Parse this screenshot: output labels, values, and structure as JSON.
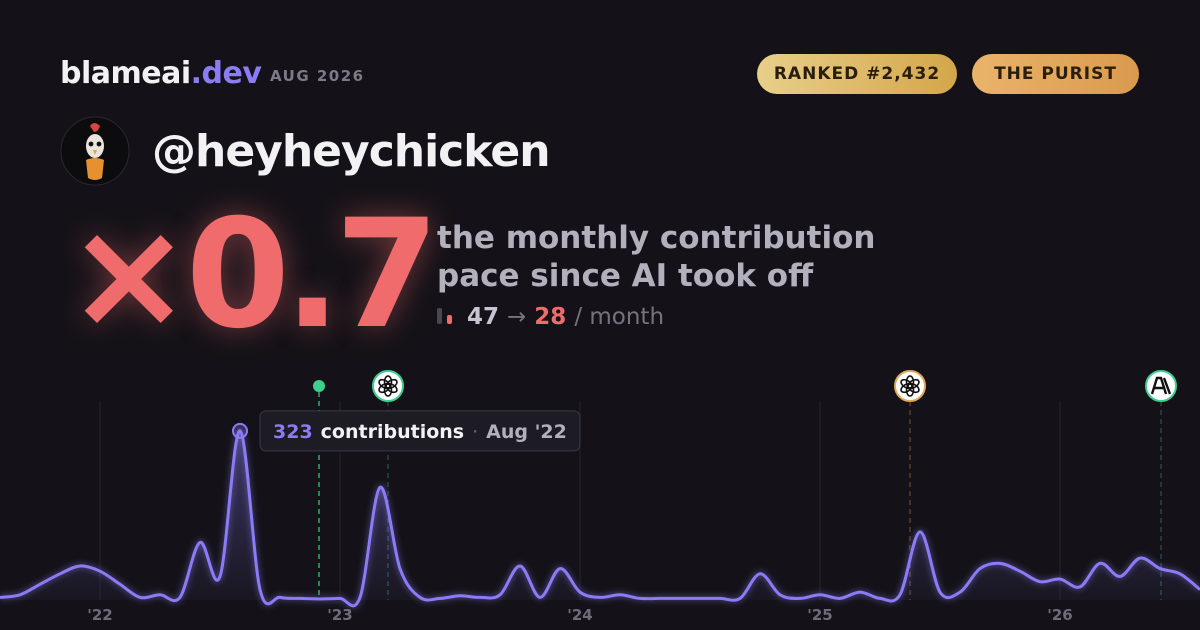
{
  "header": {
    "brand": "blameai",
    "brand_tld": ".dev",
    "period": "AUG 2026"
  },
  "badges": [
    "RANKED #2,432",
    "THE PURIST"
  ],
  "user": {
    "handle": "@heyheychicken"
  },
  "stat": {
    "multiplier": "×0.7",
    "caption": [
      "the monthly contribution",
      "pace since AI took off"
    ],
    "before": "47",
    "arrow": "→",
    "after": "28",
    "unit": "/ month"
  },
  "chart_data": {
    "type": "line",
    "categories": [
      null,
      null,
      null,
      null,
      null,
      "'22",
      null,
      null,
      null,
      null,
      null,
      null,
      null,
      null,
      null,
      null,
      null,
      "'23",
      null,
      null,
      null,
      null,
      null,
      null,
      null,
      null,
      null,
      null,
      null,
      "'24",
      null,
      null,
      null,
      null,
      null,
      null,
      null,
      null,
      null,
      null,
      null,
      "'25",
      null,
      null,
      null,
      null,
      null,
      null,
      null,
      null,
      null,
      null,
      null,
      "'26",
      null,
      null,
      null,
      null,
      null,
      null,
      null
    ],
    "series": [
      {
        "name": "contributions",
        "color": "#8b7cf6",
        "values": [
          5,
          10,
          30,
          50,
          65,
          55,
          30,
          5,
          10,
          5,
          110,
          45,
          323,
          20,
          5,
          3,
          2,
          3,
          5,
          215,
          60,
          5,
          3,
          8,
          5,
          10,
          65,
          5,
          60,
          15,
          5,
          10,
          3,
          3,
          3,
          3,
          3,
          3,
          50,
          10,
          3,
          10,
          3,
          15,
          3,
          10,
          130,
          15,
          15,
          60,
          70,
          55,
          35,
          40,
          25,
          70,
          45,
          80,
          60,
          50,
          20
        ]
      }
    ],
    "ylim": [
      0,
      380
    ],
    "tooltip": {
      "label": "contributions",
      "separator": "·",
      "date": "Aug '22"
    }
  }
}
